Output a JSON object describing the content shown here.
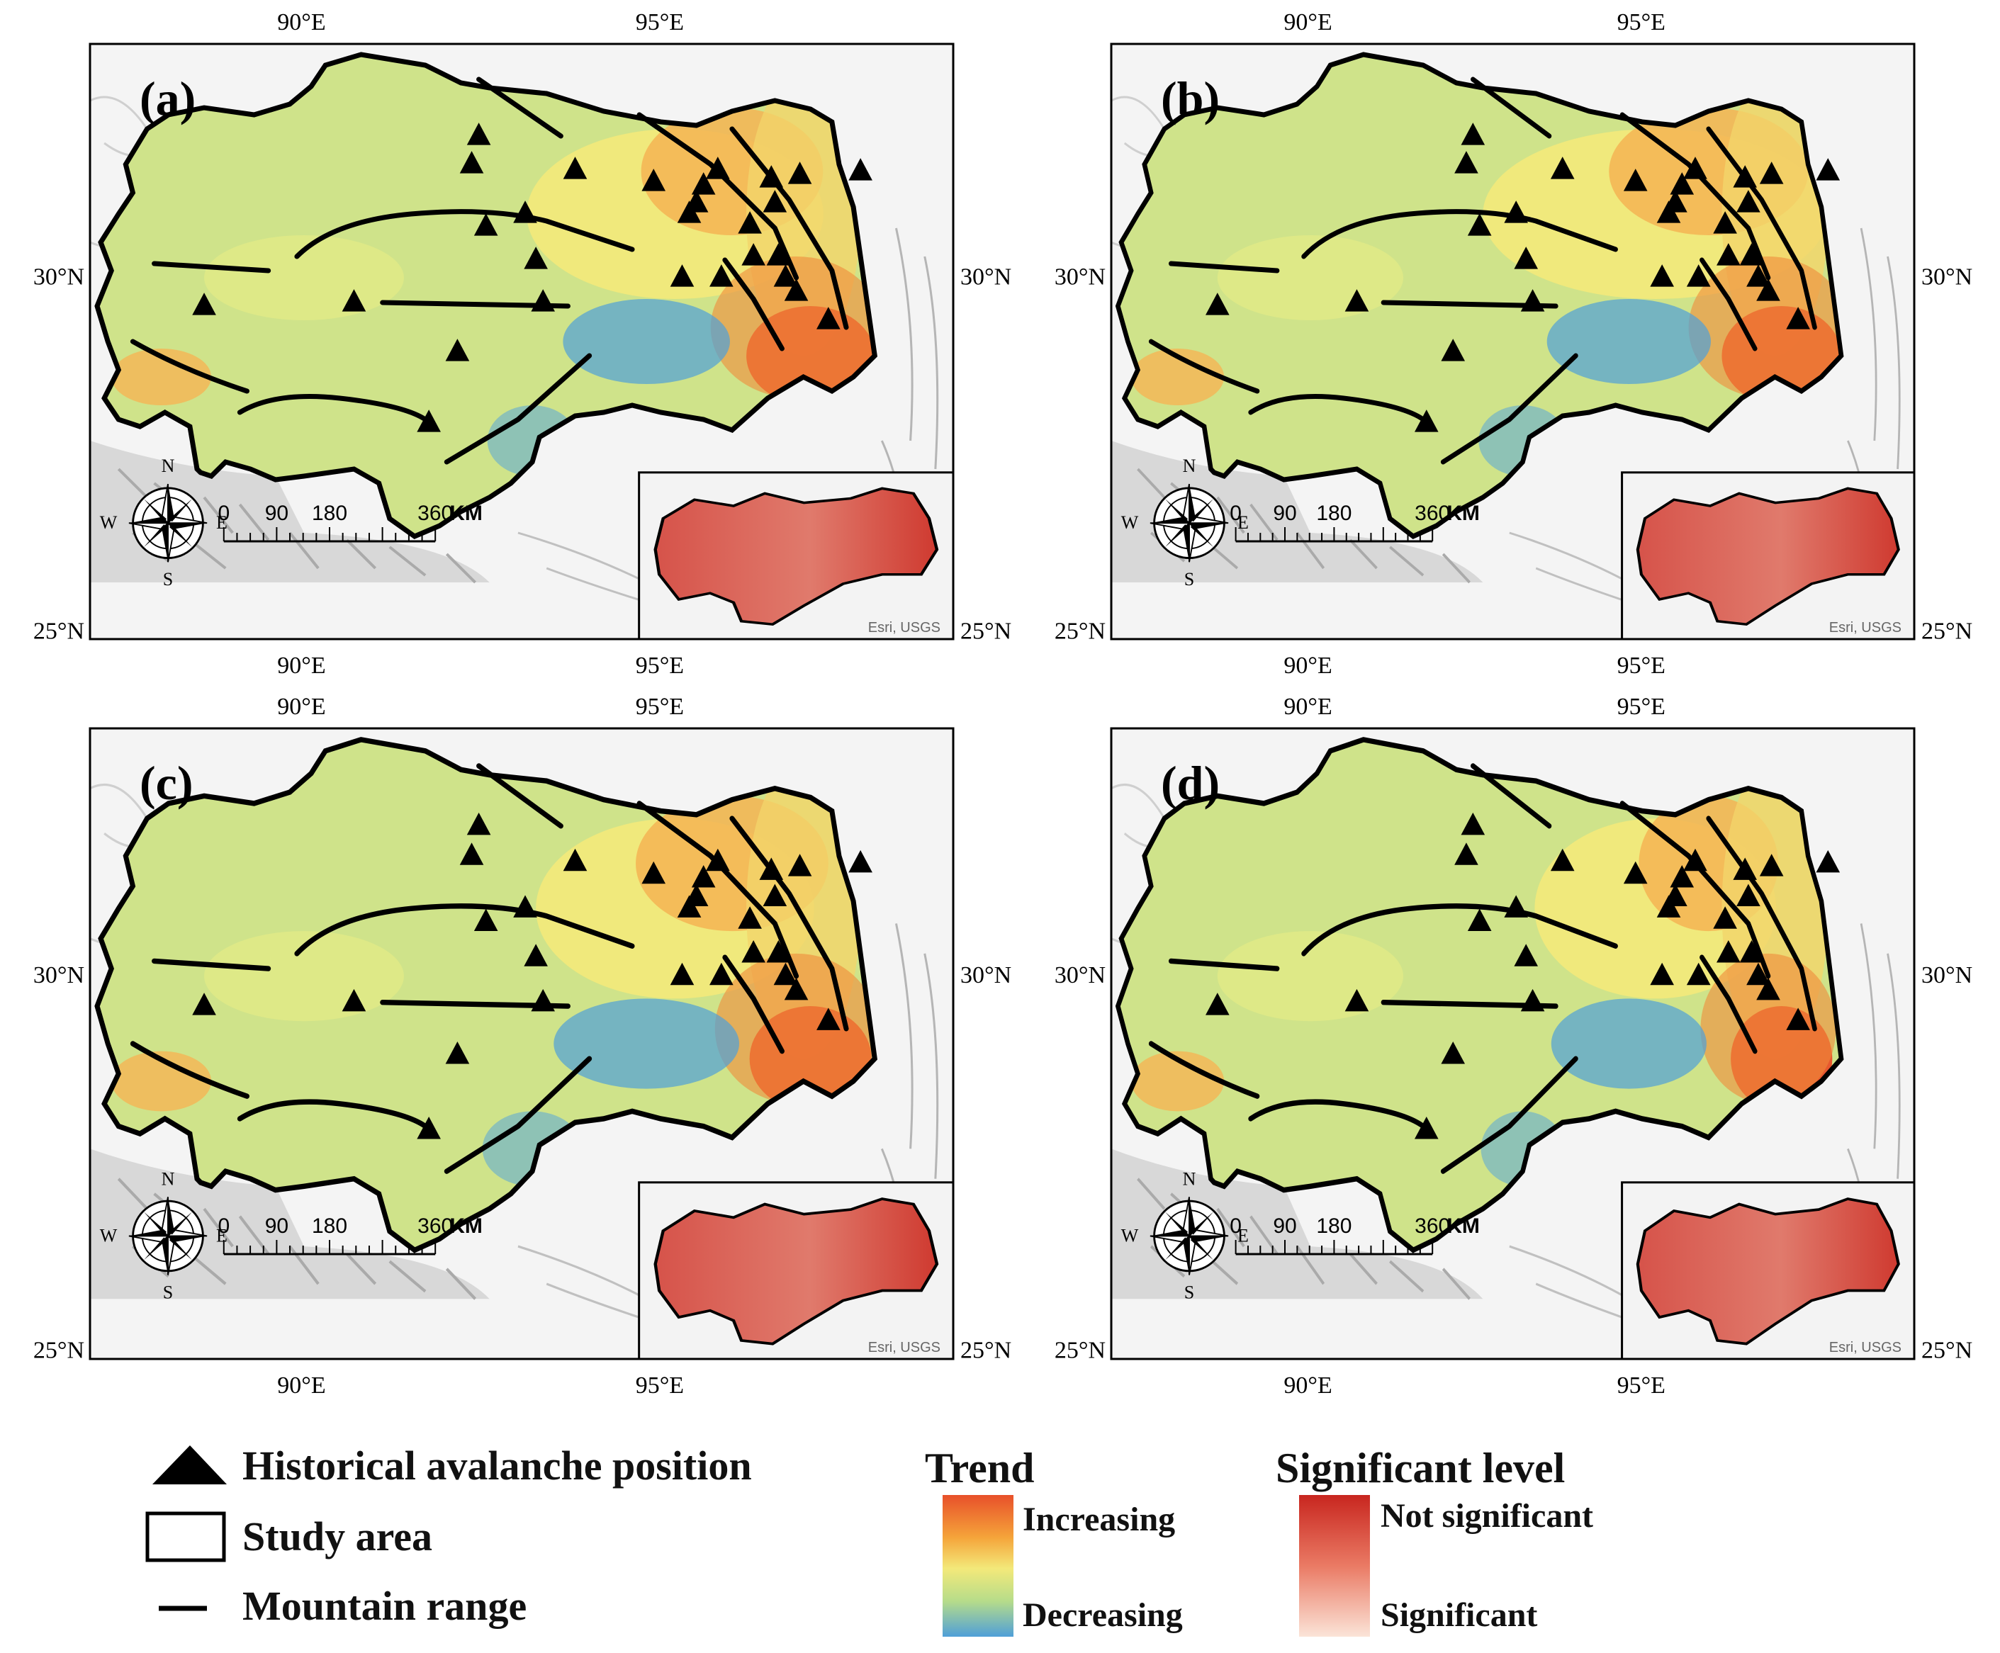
{
  "panels": [
    {
      "label": "(a)",
      "coords": {
        "lon_top": [
          "90°E",
          "95°E"
        ],
        "lon_bottom": [
          "90°E",
          "95°E"
        ],
        "lat_left": [
          "30°N",
          "25°N"
        ],
        "lat_right": [
          "30°N",
          "25°N"
        ]
      }
    },
    {
      "label": "(b)",
      "coords": {
        "lon_top": [
          "90°E",
          "95°E"
        ],
        "lon_bottom": [
          "90°E",
          "95°E"
        ],
        "lat_left": [
          "30°N",
          "25°N"
        ],
        "lat_right": [
          "30°N",
          "25°N"
        ]
      }
    },
    {
      "label": "(c)",
      "coords": {
        "lon_top": [
          "90°E",
          "95°E"
        ],
        "lon_bottom": [
          "90°E",
          "95°E"
        ],
        "lat_left": [
          "30°N",
          "25°N"
        ],
        "lat_right": [
          "30°N",
          "25°N"
        ]
      }
    },
    {
      "label": "(d)",
      "coords": {
        "lon_top": [
          "90°E",
          "95°E"
        ],
        "lon_bottom": [
          "90°E",
          "95°E"
        ],
        "lat_left": [
          "30°N",
          "25°N"
        ],
        "lat_right": [
          "30°N",
          "25°N"
        ]
      }
    }
  ],
  "compass": {
    "n": "N",
    "s": "S",
    "e": "E",
    "w": "W"
  },
  "scale_bar": {
    "ticks": [
      "0",
      "90",
      "180",
      "360"
    ],
    "unit": "KM"
  },
  "inset_credit": "Esri, USGS",
  "legend": {
    "avalanche": "Historical avalanche position",
    "study_area": "Study area",
    "mountain": "Mountain range",
    "trend_title": "Trend",
    "trend_high": "Increasing",
    "trend_low": "Decreasing",
    "sig_title": "Significant level",
    "sig_high": "Not significant",
    "sig_low": "Significant"
  },
  "colors": {
    "increasing": "#e8502a",
    "mid": "#f3e97a",
    "neutral": "#cfe38a",
    "decreasing": "#4f9fd8",
    "not_significant": "#c8261f",
    "significant": "#fbe4d8",
    "terrain": "#dcdcdc"
  },
  "icons": {
    "avalanche": "triangle-icon",
    "compass": "compass-rose-icon"
  }
}
